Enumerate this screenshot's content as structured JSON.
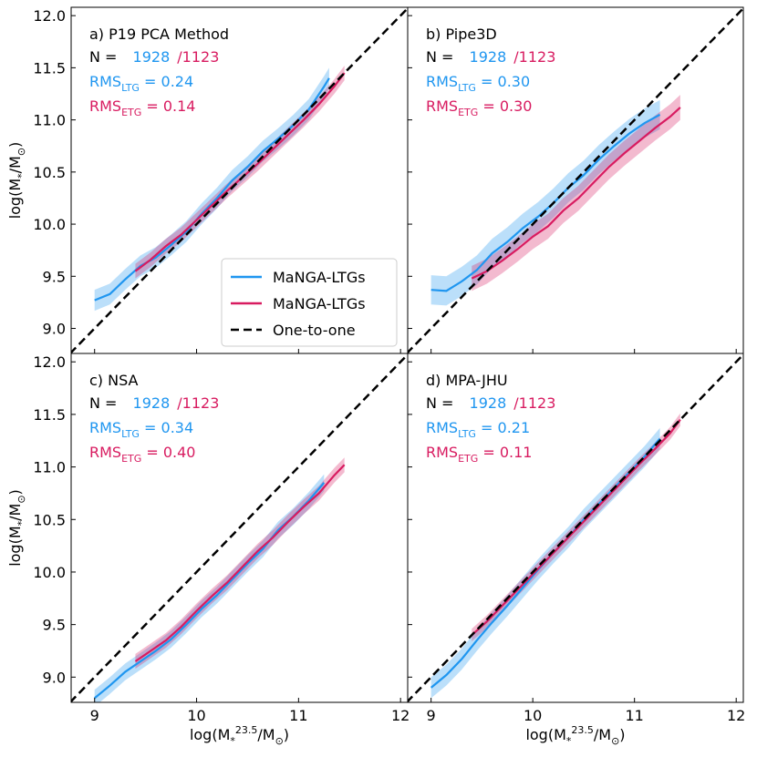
{
  "chart_data": [
    {
      "type": "line",
      "title": "a) P19 PCA Method",
      "n_label": "N = ",
      "n_ltg": "1928",
      "n_etg": "/1123",
      "rms_ltg": {
        "label": "RMS",
        "sub": "LTG",
        "text": " = 0.24"
      },
      "rms_etg": {
        "label": "RMS",
        "sub": "ETG",
        "text": " = 0.14"
      },
      "ylabel": [
        {
          "t": "log(M"
        },
        {
          "t": "*",
          "sub": true
        },
        {
          "t": "/M"
        },
        {
          "t": "⊙",
          "sub": true
        },
        {
          "t": ")"
        }
      ],
      "xlim": [
        8.77,
        12.07
      ],
      "ylim": [
        8.76,
        12.08
      ],
      "xticks": [
        9,
        10,
        11,
        12
      ],
      "yticks": [
        {
          "value": 9,
          "label": "9.0"
        },
        {
          "value": 9.5,
          "label": "9.5"
        },
        {
          "value": 10,
          "label": "10.0"
        },
        {
          "value": 10.5,
          "label": "10.5"
        },
        {
          "value": 11,
          "label": "11.0"
        },
        {
          "value": 11.5,
          "label": "11.5"
        },
        {
          "value": 12,
          "label": "12.0"
        }
      ],
      "tick_labels": {
        "x": false,
        "y": true
      },
      "one_to_one": true,
      "reference_name": "One-to-one",
      "legend": "lower right",
      "series": [
        {
          "name": "MaNGA-LTGs",
          "color": "#1f96f0",
          "band": 0.1,
          "x": [
            9.0,
            9.15,
            9.3,
            9.45,
            9.6,
            9.75,
            9.9,
            10.05,
            10.2,
            10.35,
            10.5,
            10.65,
            10.8,
            10.95,
            11.1,
            11.25,
            11.3
          ],
          "values": [
            9.27,
            9.33,
            9.47,
            9.6,
            9.68,
            9.8,
            9.93,
            10.1,
            10.25,
            10.42,
            10.55,
            10.7,
            10.82,
            10.95,
            11.1,
            11.32,
            11.4
          ]
        },
        {
          "name": "MaNGA-LTGs",
          "color": "#d81b60",
          "band": 0.07,
          "x": [
            9.4,
            9.55,
            9.7,
            9.85,
            10.0,
            10.15,
            10.3,
            10.45,
            10.6,
            10.75,
            10.9,
            11.05,
            11.2,
            11.35,
            11.45
          ],
          "values": [
            9.55,
            9.66,
            9.79,
            9.9,
            10.04,
            10.18,
            10.32,
            10.45,
            10.58,
            10.72,
            10.86,
            11.0,
            11.15,
            11.32,
            11.45
          ]
        }
      ]
    },
    {
      "type": "line",
      "title": "b) Pipe3D",
      "n_label": "N = ",
      "n_ltg": "1928",
      "n_etg": "/1123",
      "rms_ltg": {
        "label": "RMS",
        "sub": "LTG",
        "text": " = 0.30"
      },
      "rms_etg": {
        "label": "RMS",
        "sub": "ETG",
        "text": " = 0.30"
      },
      "xlim": [
        8.77,
        12.07
      ],
      "ylim": [
        8.76,
        12.08
      ],
      "xticks": [
        9,
        10,
        11,
        12
      ],
      "yticks": [
        9,
        9.5,
        10,
        10.5,
        11,
        11.5,
        12
      ],
      "tick_labels": {
        "x": false,
        "y": false
      },
      "one_to_one": true,
      "series": [
        {
          "color": "#1f96f0",
          "band": 0.14,
          "x": [
            9.0,
            9.15,
            9.3,
            9.45,
            9.6,
            9.75,
            9.9,
            10.05,
            10.2,
            10.35,
            10.5,
            10.65,
            10.8,
            10.95,
            11.1,
            11.25
          ],
          "values": [
            9.37,
            9.36,
            9.45,
            9.56,
            9.72,
            9.83,
            9.96,
            10.07,
            10.2,
            10.35,
            10.47,
            10.62,
            10.75,
            10.87,
            10.97,
            11.05
          ]
        },
        {
          "color": "#d81b60",
          "band": 0.12,
          "x": [
            9.4,
            9.55,
            9.7,
            9.85,
            10.0,
            10.15,
            10.3,
            10.45,
            10.6,
            10.75,
            10.9,
            11.05,
            11.2,
            11.35,
            11.45
          ],
          "values": [
            9.48,
            9.55,
            9.65,
            9.76,
            9.88,
            9.98,
            10.13,
            10.25,
            10.4,
            10.55,
            10.68,
            10.8,
            10.92,
            11.03,
            11.12
          ]
        }
      ]
    },
    {
      "type": "line",
      "title": "c) NSA",
      "n_label": "N = ",
      "n_ltg": "1928",
      "n_etg": "/1123",
      "rms_ltg": {
        "label": "RMS",
        "sub": "LTG",
        "text": " = 0.34"
      },
      "rms_etg": {
        "label": "RMS",
        "sub": "ETG",
        "text": " = 0.40"
      },
      "ylabel": [
        {
          "t": "log(M"
        },
        {
          "t": "*",
          "sub": true
        },
        {
          "t": "/M"
        },
        {
          "t": "⊙",
          "sub": true
        },
        {
          "t": ")"
        }
      ],
      "xlabel": [
        {
          "t": "log(M"
        },
        {
          "t": "*",
          "sub": true
        },
        {
          "t": "23.5",
          "sup": true
        },
        {
          "t": "/M"
        },
        {
          "t": "⊙",
          "sub": true
        },
        {
          "t": ")"
        }
      ],
      "xlim": [
        8.77,
        12.07
      ],
      "ylim": [
        8.76,
        12.08
      ],
      "xticks": [
        9,
        10,
        11,
        12
      ],
      "yticks": [
        {
          "value": 9,
          "label": "9.0"
        },
        {
          "value": 9.5,
          "label": "9.5"
        },
        {
          "value": 10,
          "label": "10.0"
        },
        {
          "value": 10.5,
          "label": "10.5"
        },
        {
          "value": 11,
          "label": "11.0"
        },
        {
          "value": 11.5,
          "label": "11.5"
        },
        {
          "value": 12,
          "label": "12.0"
        }
      ],
      "tick_labels": {
        "x": true,
        "y": true
      },
      "one_to_one": true,
      "series": [
        {
          "color": "#1f96f0",
          "band": 0.08,
          "x": [
            9.0,
            9.15,
            9.3,
            9.45,
            9.6,
            9.75,
            9.9,
            10.05,
            10.2,
            10.35,
            10.5,
            10.65,
            10.8,
            10.95,
            11.1,
            11.25
          ],
          "values": [
            8.8,
            8.92,
            9.05,
            9.15,
            9.25,
            9.36,
            9.5,
            9.65,
            9.78,
            9.93,
            10.08,
            10.22,
            10.4,
            10.53,
            10.68,
            10.85
          ]
        },
        {
          "color": "#d81b60",
          "band": 0.07,
          "x": [
            9.4,
            9.55,
            9.7,
            9.85,
            10.0,
            10.15,
            10.3,
            10.45,
            10.6,
            10.75,
            10.9,
            11.05,
            11.2,
            11.35,
            11.45
          ],
          "values": [
            9.15,
            9.25,
            9.35,
            9.48,
            9.63,
            9.77,
            9.9,
            10.05,
            10.2,
            10.33,
            10.48,
            10.62,
            10.75,
            10.92,
            11.02
          ]
        }
      ]
    },
    {
      "type": "line",
      "title": "d) MPA-JHU",
      "n_label": "N = ",
      "n_ltg": "1928",
      "n_etg": "/1123",
      "rms_ltg": {
        "label": "RMS",
        "sub": "LTG",
        "text": " = 0.21"
      },
      "rms_etg": {
        "label": "RMS",
        "sub": "ETG",
        "text": " = 0.11"
      },
      "xlabel": [
        {
          "t": "log(M"
        },
        {
          "t": "*",
          "sub": true
        },
        {
          "t": "23.5",
          "sup": true
        },
        {
          "t": "/M"
        },
        {
          "t": "⊙",
          "sub": true
        },
        {
          "t": ")"
        }
      ],
      "xlim": [
        8.77,
        12.07
      ],
      "ylim": [
        8.76,
        12.08
      ],
      "xticks": [
        9,
        10,
        11,
        12
      ],
      "yticks": [
        9,
        9.5,
        10,
        10.5,
        11,
        11.5,
        12
      ],
      "tick_labels": {
        "x": true,
        "y": false
      },
      "one_to_one": true,
      "series": [
        {
          "color": "#1f96f0",
          "band": 0.1,
          "x": [
            9.0,
            9.15,
            9.3,
            9.45,
            9.6,
            9.75,
            9.9,
            10.05,
            10.2,
            10.35,
            10.5,
            10.65,
            10.8,
            10.95,
            11.1,
            11.25
          ],
          "values": [
            8.9,
            9.02,
            9.17,
            9.35,
            9.52,
            9.68,
            9.85,
            10.02,
            10.18,
            10.33,
            10.5,
            10.65,
            10.8,
            10.95,
            11.1,
            11.27
          ]
        },
        {
          "color": "#d81b60",
          "band": 0.06,
          "x": [
            9.4,
            9.55,
            9.7,
            9.85,
            10.0,
            10.15,
            10.3,
            10.45,
            10.6,
            10.75,
            10.9,
            11.05,
            11.2,
            11.35,
            11.45
          ],
          "values": [
            9.4,
            9.53,
            9.68,
            9.83,
            9.98,
            10.13,
            10.28,
            10.43,
            10.58,
            10.73,
            10.88,
            11.03,
            11.17,
            11.32,
            11.45
          ]
        }
      ]
    }
  ]
}
